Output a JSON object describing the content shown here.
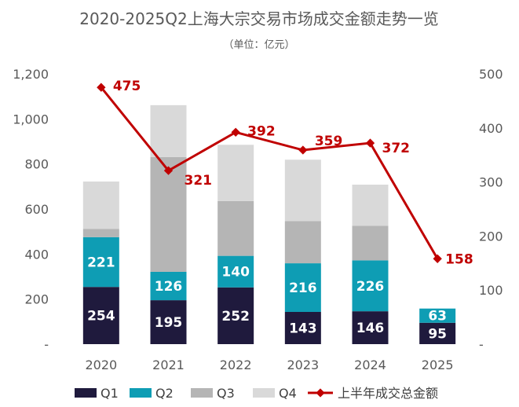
{
  "chart_data": {
    "type": "bar",
    "title": "2020-2025Q2上海大宗交易市场成交金额走势一览",
    "subtitle": "（单位：亿元）",
    "categories": [
      "2020",
      "2021",
      "2022",
      "2023",
      "2024",
      "2025"
    ],
    "stacked": true,
    "series": [
      {
        "name": "Q1",
        "color": "#1f1a3d",
        "values": [
          254,
          195,
          252,
          143,
          146,
          95
        ],
        "labels": [
          "254",
          "195",
          "252",
          "143",
          "146",
          "95"
        ]
      },
      {
        "name": "Q2",
        "color": "#0e9db4",
        "values": [
          221,
          126,
          140,
          216,
          226,
          63
        ],
        "labels": [
          "221",
          "126",
          "140",
          "216",
          "226",
          "63"
        ]
      },
      {
        "name": "Q3",
        "color": "#b5b5b5",
        "values": [
          37,
          510,
          243,
          187,
          153,
          null
        ]
      },
      {
        "name": "Q4",
        "color": "#d9d9d9",
        "values": [
          210,
          230,
          250,
          273,
          183,
          null
        ]
      }
    ],
    "line_series": {
      "name": "上半年成交总金额",
      "color": "#c00000",
      "axis": "right",
      "values": [
        475,
        321,
        392,
        359,
        372,
        158
      ],
      "labels": [
        "475",
        "321",
        "392",
        "359",
        "372",
        "158"
      ]
    },
    "y_left": {
      "min": 0,
      "max": 1200,
      "ticks": [
        0,
        200,
        400,
        600,
        800,
        1000,
        1200
      ],
      "tick_labels": [
        "-",
        "200",
        "400",
        "600",
        "800",
        "1,000",
        "1,200"
      ]
    },
    "y_right": {
      "min": 0,
      "max": 500,
      "ticks": [
        0,
        100,
        200,
        300,
        400,
        500
      ],
      "tick_labels": [
        "-",
        "100",
        "200",
        "300",
        "400",
        "500"
      ]
    },
    "legend": [
      "Q1",
      "Q2",
      "Q3",
      "Q4",
      "上半年成交总金额"
    ],
    "legend_position": "bottom"
  }
}
